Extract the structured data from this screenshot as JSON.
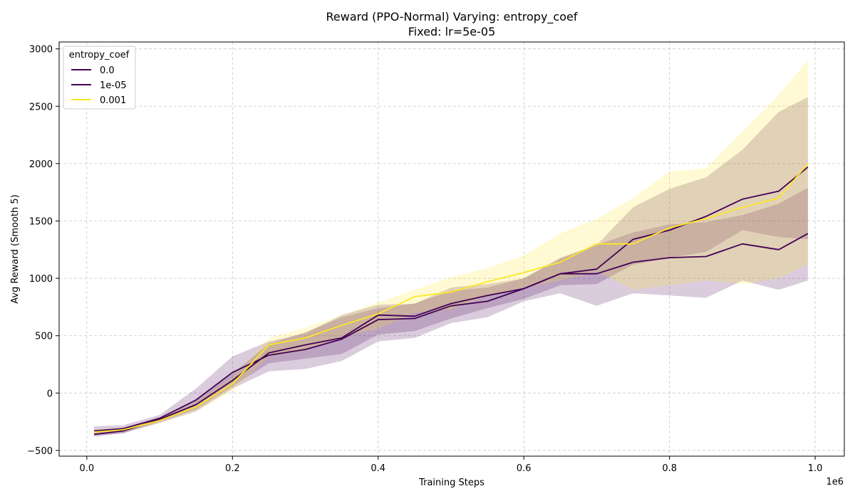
{
  "chart_data": {
    "type": "line",
    "title": "Reward (PPO-Normal) Varying: entropy_coef",
    "subtitle": "Fixed: lr=5e-05",
    "xlabel": "Training Steps",
    "ylabel": "Avg Reward (Smooth 5)",
    "x_scale_label": "1e6",
    "xlim": [
      -0.038,
      1.04
    ],
    "ylim": [
      -550,
      3060
    ],
    "x_ticks": [
      0.0,
      0.2,
      0.4,
      0.6,
      0.8,
      1.0
    ],
    "x_tick_labels": [
      "0.0",
      "0.2",
      "0.4",
      "0.6",
      "0.8",
      "1.0"
    ],
    "y_ticks": [
      -500,
      0,
      500,
      1000,
      1500,
      2000,
      2500,
      3000
    ],
    "y_tick_labels": [
      "−500",
      "0",
      "500",
      "1000",
      "1500",
      "2000",
      "2500",
      "3000"
    ],
    "grid": true,
    "legend": {
      "title": "entropy_coef",
      "placement": "top-left"
    },
    "x": [
      0.01,
      0.05,
      0.1,
      0.15,
      0.2,
      0.25,
      0.3,
      0.35,
      0.4,
      0.45,
      0.5,
      0.55,
      0.6,
      0.65,
      0.7,
      0.75,
      0.8,
      0.85,
      0.9,
      0.95,
      0.99
    ],
    "series": [
      {
        "name": "0.0",
        "color": "#440154",
        "values": [
          -330,
          -310,
          -220,
          -60,
          180,
          330,
          380,
          470,
          640,
          650,
          760,
          800,
          910,
          1040,
          1040,
          1140,
          1180,
          1190,
          1300,
          1250,
          1390
        ],
        "lower": [
          -370,
          -350,
          -260,
          -160,
          40,
          190,
          210,
          280,
          450,
          480,
          610,
          660,
          800,
          870,
          760,
          870,
          850,
          830,
          980,
          900,
          980
        ],
        "upper": [
          -290,
          -280,
          -190,
          40,
          320,
          450,
          520,
          680,
          770,
          780,
          890,
          920,
          1000,
          1170,
          1290,
          1400,
          1470,
          1490,
          1550,
          1650,
          1790
        ]
      },
      {
        "name": "1e-05",
        "color": "#440154",
        "values": [
          -360,
          -330,
          -230,
          -100,
          110,
          350,
          420,
          480,
          680,
          670,
          780,
          850,
          910,
          1040,
          1080,
          1340,
          1420,
          1540,
          1690,
          1760,
          1970
        ],
        "lower": [
          -380,
          -350,
          -250,
          -140,
          60,
          260,
          300,
          340,
          510,
          540,
          650,
          740,
          820,
          940,
          950,
          1120,
          1180,
          1230,
          1420,
          1360,
          1340
        ],
        "upper": [
          -340,
          -310,
          -210,
          -60,
          170,
          430,
          530,
          660,
          740,
          780,
          920,
          950,
          1000,
          1180,
          1290,
          1620,
          1780,
          1880,
          2120,
          2450,
          2580
        ]
      },
      {
        "name": "0.001",
        "color": "#fde725",
        "values": [
          -340,
          -320,
          -240,
          -120,
          80,
          420,
          480,
          590,
          690,
          840,
          880,
          970,
          1050,
          1140,
          1300,
          1300,
          1440,
          1520,
          1620,
          1700,
          2000
        ],
        "lower": [
          -360,
          -340,
          -260,
          -160,
          20,
          320,
          370,
          490,
          560,
          700,
          730,
          850,
          920,
          980,
          1060,
          900,
          940,
          980,
          950,
          1000,
          1120
        ],
        "upper": [
          -320,
          -300,
          -220,
          -80,
          140,
          480,
          570,
          680,
          790,
          900,
          1010,
          1090,
          1200,
          1390,
          1520,
          1700,
          1930,
          1960,
          2280,
          2600,
          2900
        ]
      }
    ]
  }
}
